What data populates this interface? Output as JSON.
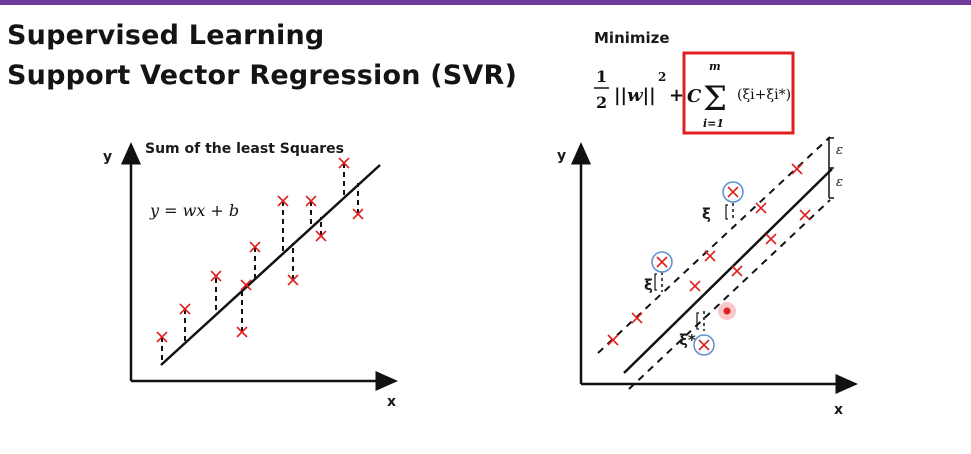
{
  "slide": {
    "title_line1": "Supervised Learning",
    "title_line2": "Support Vector Regression (SVR)",
    "accent_color": "#6f3d99"
  },
  "left_plot": {
    "heading": "Sum of the least Squares",
    "equation": "y = wx + b",
    "y_axis_label": "y",
    "x_axis_label": "x",
    "marker_icon": "cross-icon",
    "marker_color": "#e02020"
  },
  "right_plot": {
    "objective_heading": "Minimize",
    "objective_half": "1/2",
    "objective_norm": "||w||",
    "objective_exponent": "2",
    "objective_plus": "+",
    "objective_C": "C",
    "objective_sum_symbol": "Σ",
    "objective_sum_upper": "m",
    "objective_sum_lower": "i=1",
    "objective_slack_term": "(ξi+ξi*)",
    "highlight_box_color": "#e02020",
    "epsilon_upper": "ε",
    "epsilon_lower": "ε",
    "slack_label_1": "ξ",
    "slack_label_2": "ξ",
    "slack_label_3": "ξ*",
    "y_axis_label": "y",
    "x_axis_label": "x",
    "support_vector_icon": "circle-icon",
    "cursor_dot_color": "#e02020"
  }
}
